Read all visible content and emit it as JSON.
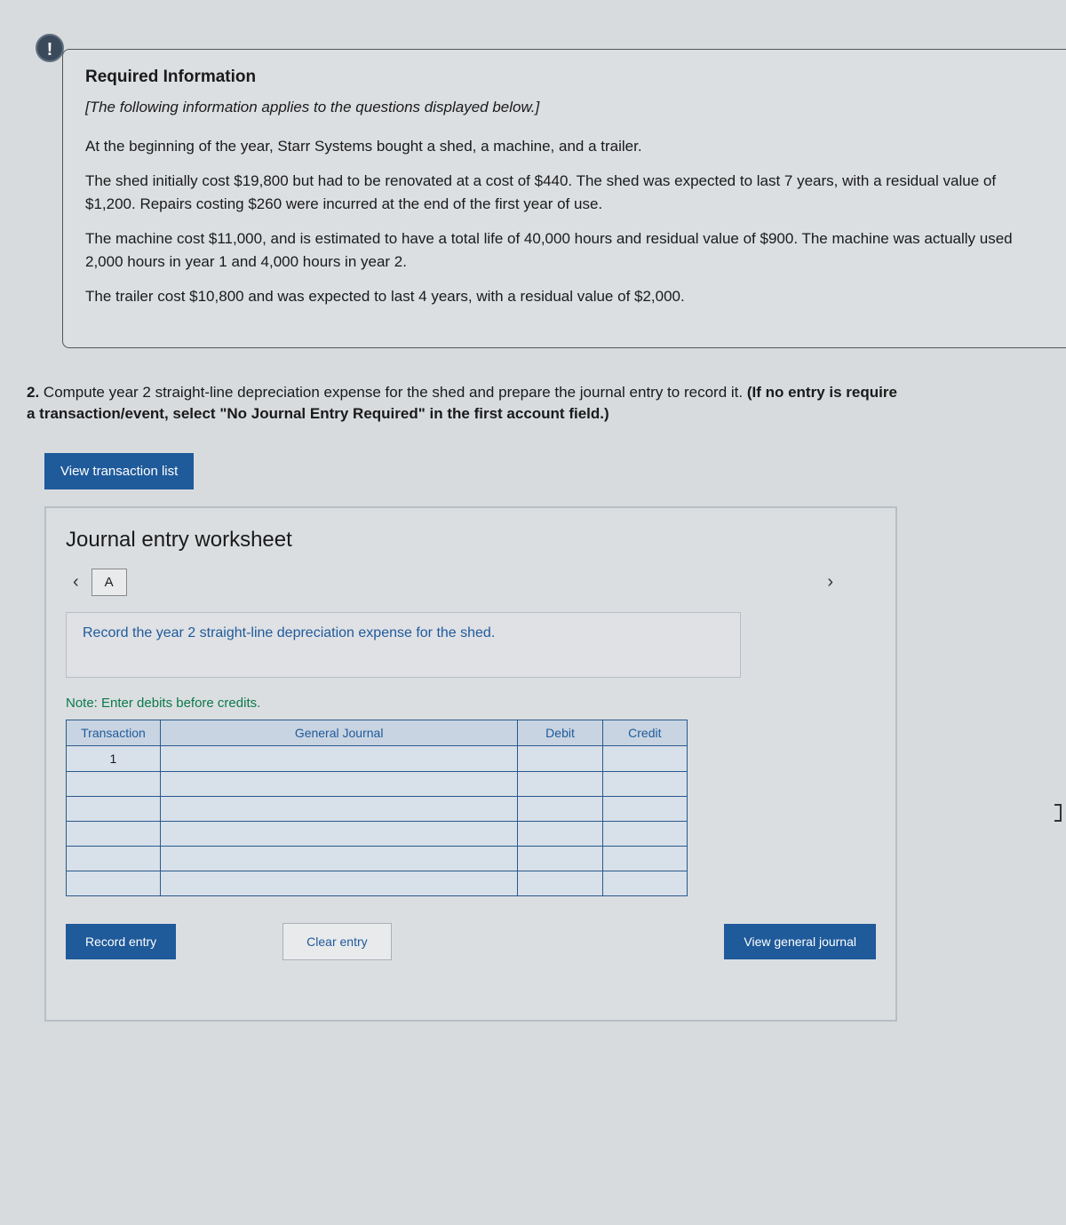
{
  "info_icon": "!",
  "required_info": {
    "heading": "Required Information",
    "intro": "[The following information applies to the questions displayed below.]",
    "p1": "At the beginning of the year, Starr Systems bought a shed, a machine, and a trailer.",
    "p2": "The shed initially cost $19,800 but had to be renovated at a cost of $440. The shed was expected to last 7 years, with a residual value of $1,200. Repairs costing $260 were incurred at the end of the first year of use.",
    "p3": "The machine cost $11,000, and is estimated to have a total life of 40,000 hours and residual value of $900. The machine was actually used 2,000 hours in year 1 and 4,000 hours in year 2.",
    "p4": "The trailer cost $10,800 and was expected to last 4 years, with a residual value of $2,000."
  },
  "question": {
    "num": "2.",
    "text_a": " Compute year 2 straight-line depreciation expense for the shed and prepare the journal entry to record it. ",
    "bold_a": "(If no entry is require",
    "text_b": "a transaction/event, select \"No Journal Entry Required\" in the first account field.)"
  },
  "view_list_btn": "View transaction list",
  "worksheet": {
    "title": "Journal entry worksheet",
    "tab": "A",
    "instruction": "Record the year 2 straight-line depreciation expense for the shed.",
    "note": "Note: Enter debits before credits.",
    "headers": {
      "tx": "Transaction",
      "gj": "General Journal",
      "db": "Debit",
      "cr": "Credit"
    },
    "row1_tx": "1",
    "record_btn": "Record entry",
    "clear_btn": "Clear entry",
    "view_gj_btn": "View general journal"
  }
}
